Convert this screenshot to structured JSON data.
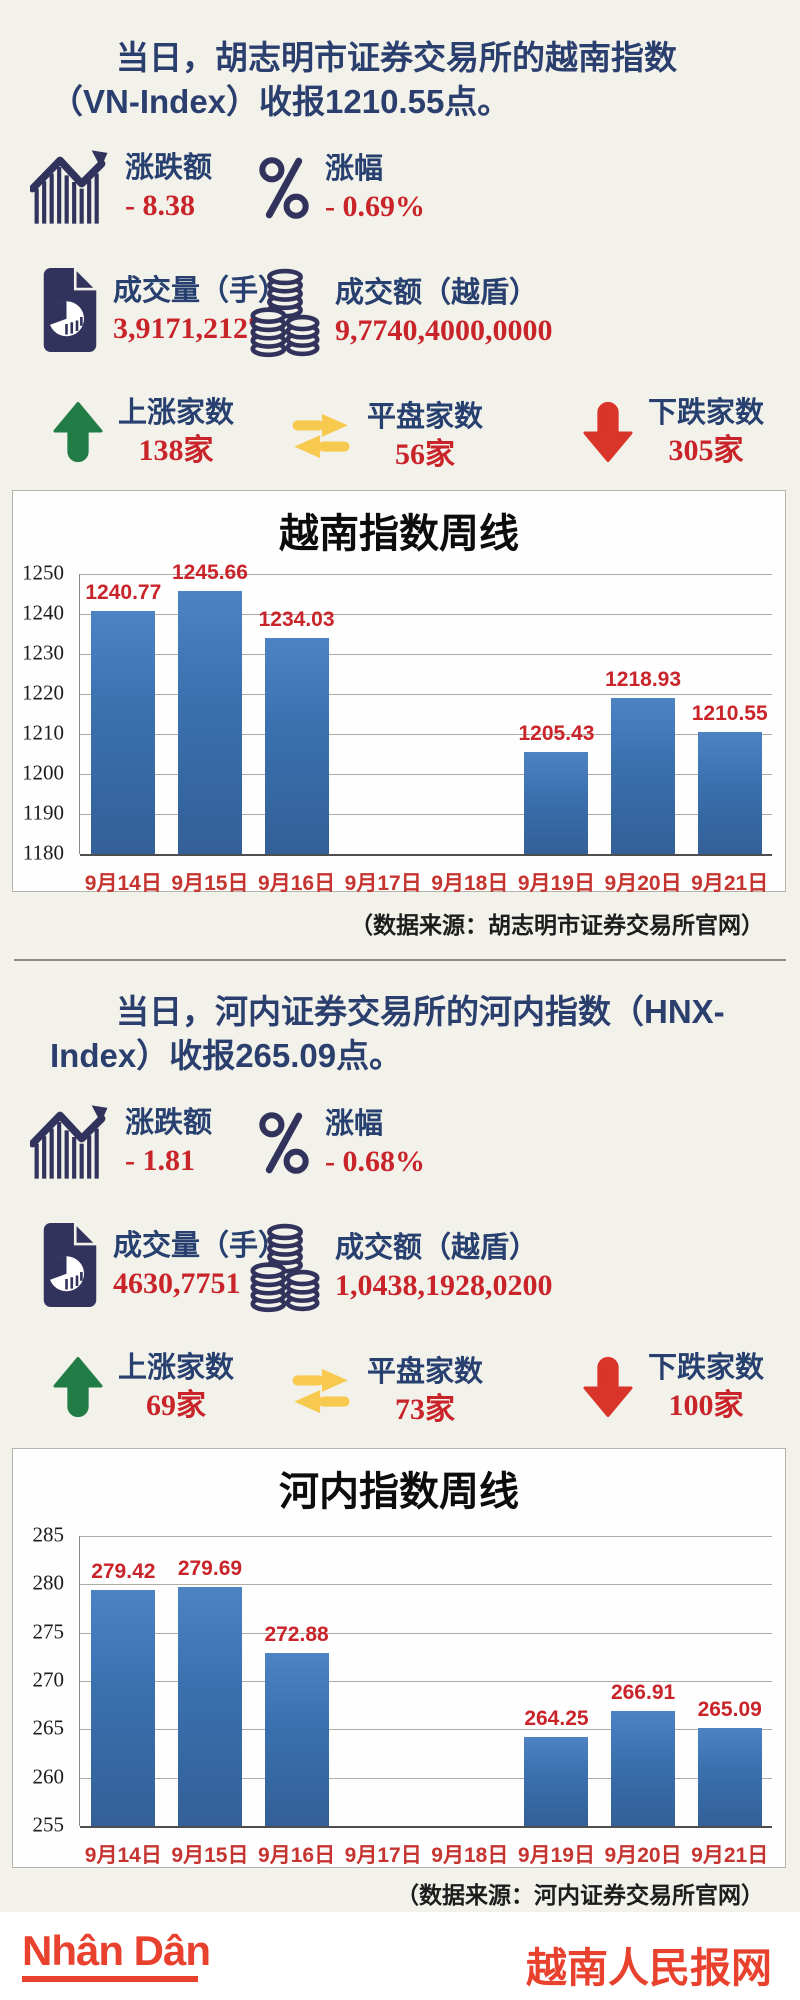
{
  "colors": {
    "background": "#f2f1ea",
    "navy_text": "#27406f",
    "navy_icon": "#32335c",
    "red_value": "#c9242a",
    "red_axis_label": "#c63430",
    "bar_blue": "#3a6fae",
    "green_up": "#217c46",
    "yellow_flat": "#f7c94e",
    "red_down": "#d9352b",
    "footer_red": "#e8412e",
    "chart_background": "#fefefe"
  },
  "sections": {
    "vn": {
      "title_lines": [
        "当日，胡志明市证券交易所的越南指数",
        "（VN-Index）收报1210.55点。"
      ],
      "stats": [
        {
          "icon": "trend-chart-icon",
          "label": "涨跌额",
          "value": "- 8.38"
        },
        {
          "icon": "percent-icon",
          "label": "涨幅",
          "value": "- 0.69%"
        },
        {
          "icon": "volume-doc-icon",
          "label": "成交量（手）",
          "value": "3,9171,2127"
        },
        {
          "icon": "coins-icon",
          "label": "成交额（越盾）",
          "value": "9,7740,4000,0000"
        },
        {
          "icon": "up-arrow-icon",
          "label": "上涨家数",
          "value": "138家"
        },
        {
          "icon": "transfer-arrows-icon",
          "label": "平盘家数",
          "value": "56家"
        },
        {
          "icon": "down-arrow-icon",
          "label": "下跌家数",
          "value": "305家"
        }
      ]
    },
    "hnx": {
      "title_lines": [
        "当日，河内证券交易所的河内指数（HNX-",
        "Index）收报265.09点。"
      ],
      "stats": [
        {
          "icon": "trend-chart-icon",
          "label": "涨跌额",
          "value": "- 1.81"
        },
        {
          "icon": "percent-icon",
          "label": "涨幅",
          "value": "- 0.68%"
        },
        {
          "icon": "volume-doc-icon",
          "label": "成交量（手）",
          "value": "4630,7751"
        },
        {
          "icon": "coins-icon",
          "label": "成交额（越盾）",
          "value": "1,0438,1928,0200"
        },
        {
          "icon": "up-arrow-icon",
          "label": "上涨家数",
          "value": "69家"
        },
        {
          "icon": "transfer-arrows-icon",
          "label": "平盘家数",
          "value": "73家"
        },
        {
          "icon": "down-arrow-icon",
          "label": "下跌家数",
          "value": "100家"
        }
      ]
    }
  },
  "chart_data": [
    {
      "id": "vn-index-weekly",
      "type": "bar",
      "title": "越南指数周线",
      "categories": [
        "9月14日",
        "9月15日",
        "9月16日",
        "9月17日",
        "9月18日",
        "9月19日",
        "9月20日",
        "9月21日"
      ],
      "values": [
        1240.77,
        1245.66,
        1234.03,
        null,
        null,
        1205.43,
        1218.93,
        1210.55
      ],
      "ylim": [
        1180,
        1250
      ],
      "ytick_step": 10,
      "grid": true,
      "legend": false,
      "bar_color": "#3a6fae",
      "source": "（数据来源：胡志明市证券交易所官网）"
    },
    {
      "id": "hnx-index-weekly",
      "type": "bar",
      "title": "河内指数周线",
      "categories": [
        "9月14日",
        "9月15日",
        "9月16日",
        "9月17日",
        "9月18日",
        "9月19日",
        "9月20日",
        "9月21日"
      ],
      "values": [
        279.42,
        279.69,
        272.88,
        null,
        null,
        264.25,
        266.91,
        265.09
      ],
      "ylim": [
        255,
        285
      ],
      "ytick_step": 5,
      "grid": true,
      "legend": false,
      "bar_color": "#3a6fae",
      "source": "（数据来源：河内证券交易所官网）"
    }
  ],
  "footer": {
    "logo": "Nhân Dân",
    "site": "越南人民报网"
  },
  "icons": {
    "trend-chart-icon": "navy zigzag trend line with up-right arrow above striped bars",
    "percent-icon": "navy outlined percent sign",
    "volume-doc-icon": "navy document page with pie chart",
    "coins-icon": "navy stacks of coins",
    "up-arrow-icon": "green thick up arrow",
    "transfer-arrows-icon": "yellow opposing horizontal arrows",
    "down-arrow-icon": "red thick down arrow"
  }
}
